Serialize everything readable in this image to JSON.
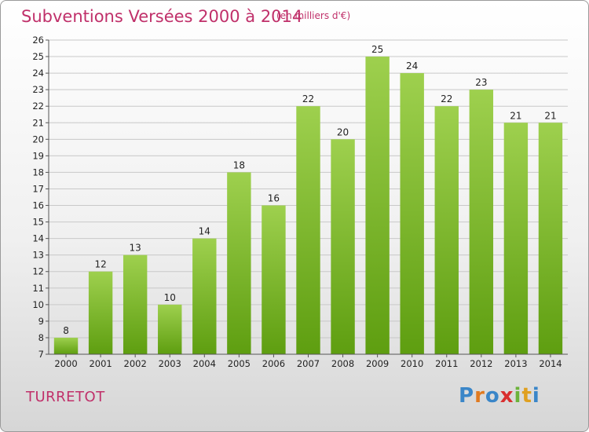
{
  "chart_data": {
    "type": "bar",
    "title": "Subventions Versées 2000 à 2014",
    "subtitle": "(en milliers d'€)",
    "categories": [
      "2000",
      "2001",
      "2002",
      "2003",
      "2004",
      "2005",
      "2006",
      "2007",
      "2008",
      "2009",
      "2010",
      "2011",
      "2012",
      "2013",
      "2014"
    ],
    "values": [
      8,
      12,
      13,
      10,
      14,
      18,
      16,
      22,
      20,
      25,
      24,
      22,
      23,
      21,
      21
    ],
    "ylim": [
      7,
      26
    ],
    "yticks": [
      7,
      8,
      9,
      10,
      11,
      12,
      13,
      14,
      15,
      16,
      17,
      18,
      19,
      20,
      21,
      22,
      23,
      24,
      25,
      26
    ],
    "grid": true,
    "bar_color_top": "#9ed04e",
    "bar_color_bottom": "#5e9e10"
  },
  "labels": {
    "commune": "TURRETOT"
  },
  "logo": {
    "letters": [
      "P",
      "r",
      "o",
      "x",
      "i",
      "t",
      "i"
    ],
    "colors": [
      "#3a86c8",
      "#e07a20",
      "#3a86c8",
      "#d92f2f",
      "#6cb33a",
      "#e0a020",
      "#3a86c8"
    ]
  }
}
